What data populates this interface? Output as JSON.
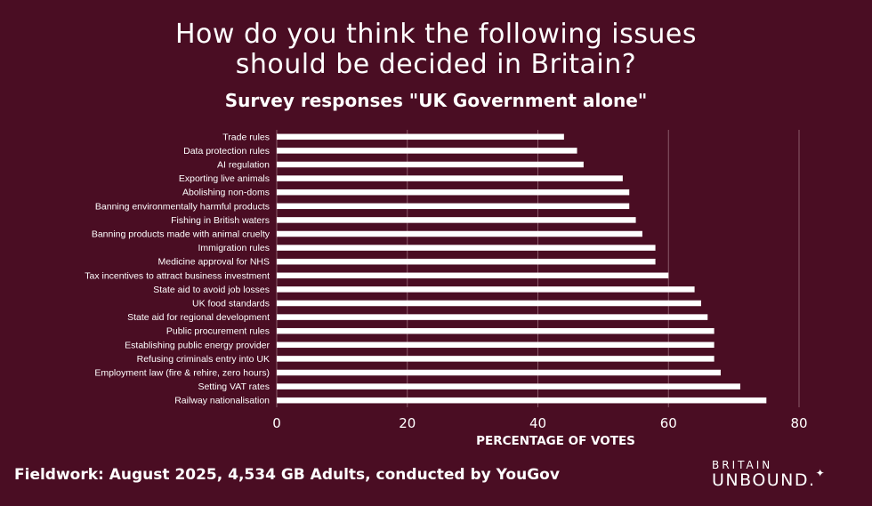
{
  "header": {
    "title_line1": "How do you think the following issues",
    "title_line2": "should be decided in Britain?",
    "subtitle": "Survey responses \"UK Government alone\""
  },
  "footer": {
    "fieldwork": "Fieldwork: August 2025, 4,534 GB Adults, conducted by YouGov"
  },
  "brand": {
    "line1": "BRITAIN",
    "line2": "UNBOUND",
    "mark": "."
  },
  "colors": {
    "background": "#4a0d23",
    "bar": "#ffffff",
    "grid": "#8a5a6a"
  },
  "chart_data": {
    "type": "bar",
    "orientation": "horizontal",
    "categories": [
      "Trade rules",
      "Data protection rules",
      "AI regulation",
      "Exporting live animals",
      "Abolishing non-doms",
      "Banning environmentally harmful products",
      "Fishing in British waters",
      "Banning products made with animal cruelty",
      "Immigration rules",
      "Medicine approval for NHS",
      "Tax incentives to attract business investment",
      "State aid to avoid job losses",
      "UK food standards",
      "State aid for regional development",
      "Public procurement rules",
      "Establishing public energy provider",
      "Refusing criminals entry into UK",
      "Employment law (fire & rehire, zero hours)",
      "Setting VAT rates",
      "Railway nationalisation"
    ],
    "values": [
      44,
      46,
      47,
      53,
      54,
      54,
      55,
      56,
      58,
      58,
      60,
      64,
      65,
      66,
      67,
      67,
      67,
      68,
      71,
      75
    ],
    "xlabel": "PERCENTAGE OF VOTES",
    "xlim": [
      0,
      80
    ],
    "xticks": [
      0,
      20,
      40,
      60,
      80
    ],
    "grid": true
  }
}
